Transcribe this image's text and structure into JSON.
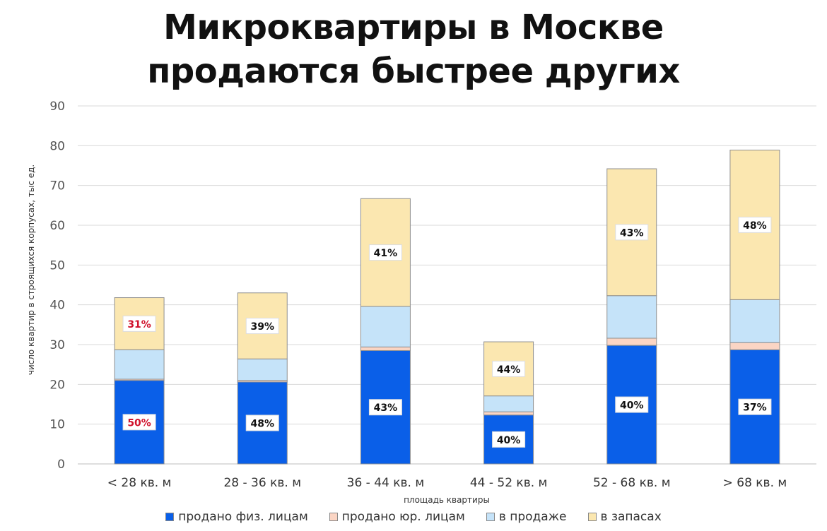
{
  "title": [
    "Микроквартиры в Москве",
    "продаются быстрее других"
  ],
  "chart_data": {
    "type": "bar",
    "stacked": true,
    "categories": [
      "< 28 кв. м",
      "28 - 36 кв. м",
      "36 - 44 кв. м",
      "44 - 52 кв. м",
      "52 - 68 кв. м",
      "> 68 кв. м"
    ],
    "xlabel": "площадь квартиры",
    "ylabel": "число квартир в строящихся корпусах, тыс ед.",
    "ylim": [
      0,
      90
    ],
    "yticks": [
      0,
      10,
      20,
      30,
      40,
      50,
      60,
      70,
      80,
      90
    ],
    "grid": true,
    "legend_position": "bottom",
    "series": [
      {
        "name": "продано физ. лицам",
        "color": "#0a5fe8",
        "values": [
          21.0,
          20.6,
          28.5,
          12.3,
          29.8,
          28.7
        ],
        "labels": [
          "50%",
          "48%",
          "43%",
          "40%",
          "40%",
          "37%"
        ]
      },
      {
        "name": "продано юр. лицам",
        "color": "#fbd5c4",
        "values": [
          0.3,
          0.4,
          0.9,
          0.8,
          1.8,
          1.8
        ],
        "labels": [
          "",
          "",
          "",
          "",
          "",
          ""
        ]
      },
      {
        "name": "в продаже",
        "color": "#c5e3f9",
        "values": [
          7.4,
          5.4,
          10.2,
          4.0,
          10.7,
          10.8
        ],
        "labels": [
          "",
          "",
          "",
          "",
          "",
          ""
        ]
      },
      {
        "name": "в запасах",
        "color": "#fbe7b0",
        "values": [
          13.1,
          16.6,
          27.1,
          13.6,
          31.9,
          37.6
        ],
        "labels": [
          "31%",
          "39%",
          "41%",
          "44%",
          "43%",
          "48%"
        ]
      }
    ],
    "label_colors": {
      "default": "#111111",
      "highlight": "#d0112b"
    },
    "highlighted_category": 0
  }
}
